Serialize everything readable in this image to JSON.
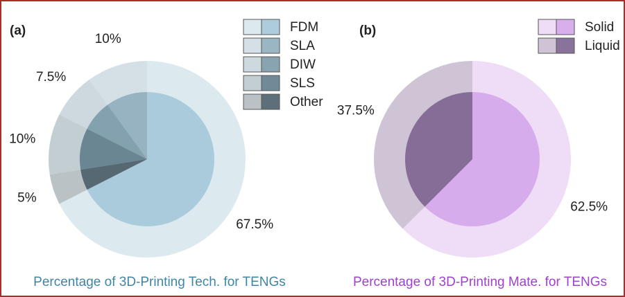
{
  "chart_data": [
    {
      "type": "pie",
      "panel_label": "(a)",
      "title": "Percentage of 3D-Printing Tech. for TENGs",
      "title_color": "#3d86a8",
      "categories": [
        "FDM",
        "SLA",
        "DIW",
        "SLS",
        "Other"
      ],
      "values": [
        67.5,
        10,
        7.5,
        10,
        5
      ],
      "value_labels": [
        "67.5%",
        "10%",
        "7.5%",
        "10%",
        "5%"
      ],
      "colors": [
        "#a4c8d8",
        "#90aebd",
        "#7b9aa8",
        "#607e8c",
        "#4b5f69"
      ]
    },
    {
      "type": "pie",
      "panel_label": "(b)",
      "title": "Percentage of 3D-Printing Mate. for TENGs",
      "title_color": "#a040d0",
      "categories": [
        "Solid",
        "Liquid"
      ],
      "values": [
        62.5,
        37.5
      ],
      "value_labels": [
        "62.5%",
        "37.5%"
      ],
      "colors": [
        "#d4a6ea",
        "#7d6490"
      ]
    }
  ]
}
